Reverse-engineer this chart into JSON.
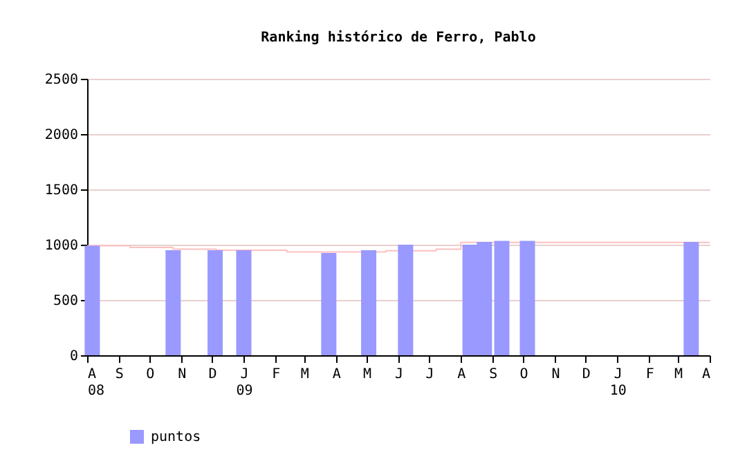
{
  "chart_data": {
    "type": "bar",
    "title": "Ranking histórico de Ferro, Pablo",
    "x": [
      "2008-08-06",
      "2008-10-24",
      "2008-12-04",
      "2009-01-01",
      "2009-03-25",
      "2009-05-03",
      "2009-06-08",
      "2009-08-10",
      "2009-08-24",
      "2009-09-10",
      "2009-10-05",
      "2010-03-14"
    ],
    "series": [
      {
        "name": "puntos",
        "color": "#9999ff",
        "values": [
          990,
          950,
          950,
          950,
          925,
          950,
          1000,
          1000,
          1025,
          1035,
          1035,
          1025
        ]
      },
      {
        "type": "step",
        "color": "#ffbfbf",
        "x": [
          "2008-08-01",
          "2008-09-12",
          "2008-10-24",
          "2008-12-05",
          "2009-02-12",
          "2009-05-20",
          "2009-07-08",
          "2009-08-01",
          "2010-04-01"
        ],
        "values": [
          990,
          975,
          960,
          950,
          935,
          945,
          960,
          1020,
          1020
        ]
      }
    ],
    "xlim": [
      "2008-08-01",
      "2010-04-01"
    ],
    "xticks": [
      {
        "value": "2008-08-01",
        "label": "A\n08"
      },
      {
        "value": "2008-09-01",
        "label": "S"
      },
      {
        "value": "2008-10-01",
        "label": "O"
      },
      {
        "value": "2008-11-01",
        "label": "N"
      },
      {
        "value": "2008-12-01",
        "label": "D"
      },
      {
        "value": "2009-01-01",
        "label": "J\n09"
      },
      {
        "value": "2009-02-01",
        "label": "F"
      },
      {
        "value": "2009-03-01",
        "label": "M"
      },
      {
        "value": "2009-04-01",
        "label": "A"
      },
      {
        "value": "2009-05-01",
        "label": "M"
      },
      {
        "value": "2009-06-01",
        "label": "J"
      },
      {
        "value": "2009-07-01",
        "label": "J"
      },
      {
        "value": "2009-08-01",
        "label": "A"
      },
      {
        "value": "2009-09-01",
        "label": "S"
      },
      {
        "value": "2009-10-01",
        "label": "O"
      },
      {
        "value": "2009-11-01",
        "label": "N"
      },
      {
        "value": "2009-12-01",
        "label": "D"
      },
      {
        "value": "2010-01-01",
        "label": "J\n10"
      },
      {
        "value": "2010-02-01",
        "label": "F"
      },
      {
        "value": "2010-03-01",
        "label": "M"
      },
      {
        "value": "2010-04-01",
        "label": "A"
      }
    ],
    "ylim": [
      0,
      2500
    ],
    "yticks": [
      0,
      500,
      1000,
      1500,
      2000,
      2500
    ],
    "grid": "y",
    "legend": "bottom left"
  }
}
